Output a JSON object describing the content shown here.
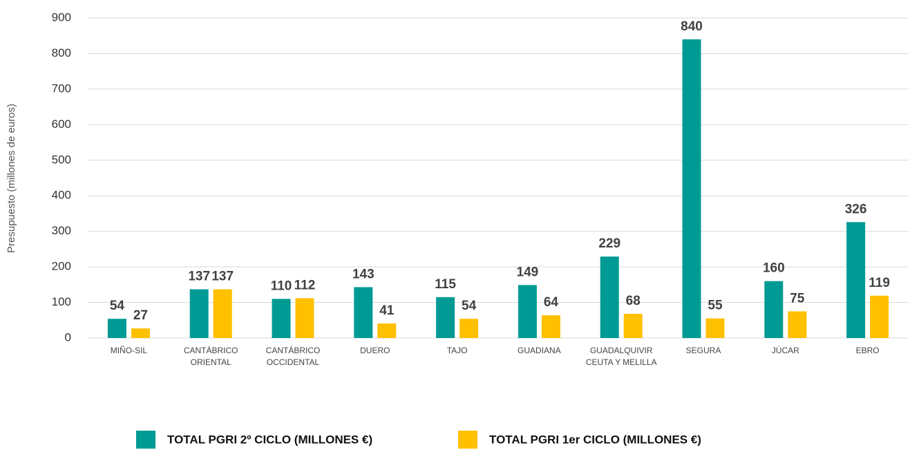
{
  "chart_data": {
    "type": "bar",
    "y_axis_label": "Presupuesto (millones de euros)",
    "categories": [
      "MIÑO-SIL",
      "CANTÁBRICO ORIENTAL",
      "CANTÁBRICO OCCIDENTAL",
      "DUERO",
      "TAJO",
      "GUADIANA",
      "GUADALQUIVIR CEUTA Y MELILLA",
      "SEGURA",
      "JÚCAR",
      "EBRO"
    ],
    "series": [
      {
        "name": "TOTAL PGRI 2º CICLO (MILLONES €)",
        "color": "#009a94",
        "values": [
          54,
          137,
          110,
          143,
          115,
          149,
          229,
          840,
          160,
          326
        ]
      },
      {
        "name": "TOTAL PGRI 1er CICLO (MILLONES €)",
        "color": "#ffc000",
        "values": [
          27,
          137,
          112,
          41,
          54,
          64,
          68,
          55,
          75,
          119
        ]
      }
    ],
    "ylim": [
      0,
      900
    ],
    "yticks": [
      0,
      100,
      200,
      300,
      400,
      500,
      600,
      700,
      800,
      900
    ],
    "grid": true,
    "legend": "bottom"
  }
}
